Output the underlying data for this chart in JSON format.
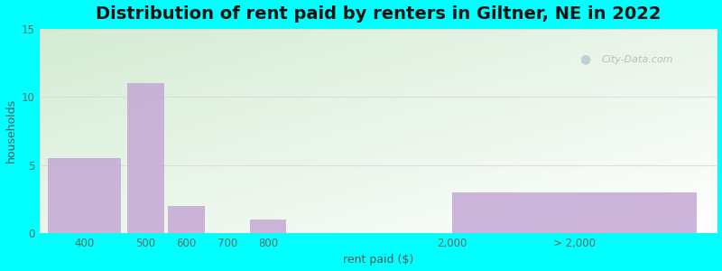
{
  "title": "Distribution of rent paid by renters in Giltner, NE in 2022",
  "xlabel": "rent paid ($)",
  "ylabel": "households",
  "bar_color": "#c4a8d4",
  "background_color": "#00ffff",
  "plot_bg_color_top_left": "#d4ecd4",
  "plot_bg_color_bottom_right": "#ffffff",
  "ylim": [
    0,
    15
  ],
  "yticks": [
    0,
    5,
    10,
    15
  ],
  "title_fontsize": 14,
  "axis_label_fontsize": 9,
  "tick_fontsize": 8.5,
  "title_color": "#111111",
  "axis_label_color": "#555555",
  "tick_color": "#666666",
  "grid_color": "#dddddd",
  "watermark_text": "City-Data.com",
  "bar_positions": [
    1.0,
    2.5,
    3.5,
    4.5,
    5.5,
    13.0
  ],
  "bar_widths": [
    1.8,
    0.9,
    0.9,
    0.9,
    0.9,
    6.0
  ],
  "bar_values": [
    5.5,
    11,
    2,
    0,
    1,
    3
  ],
  "tick_positions": [
    1.0,
    2.5,
    3.5,
    4.5,
    5.5,
    10.0,
    13.0
  ],
  "tick_labels": [
    "400",
    "500",
    "600",
    "700",
    "800",
    "2,000",
    "> 2,000"
  ],
  "xlim": [
    -0.1,
    16.5
  ]
}
